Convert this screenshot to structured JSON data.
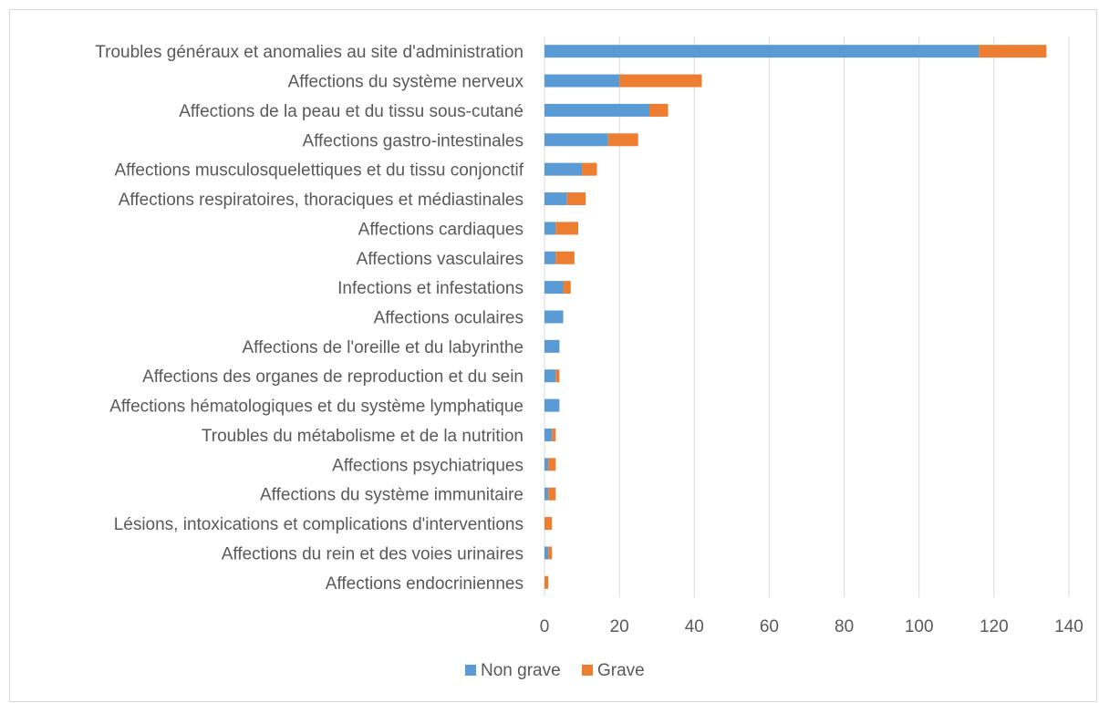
{
  "chart_data": {
    "type": "bar",
    "orientation": "horizontal",
    "stacked": true,
    "categories": [
      "Troubles généraux et anomalies au site d'administration",
      "Affections du système nerveux",
      "Affections de la peau et du tissu sous-cutané",
      "Affections gastro-intestinales",
      "Affections musculosquelettiques et du tissu conjonctif",
      "Affections respiratoires, thoraciques et médiastinales",
      "Affections cardiaques",
      "Affections vasculaires",
      "Infections et infestations",
      "Affections oculaires",
      "Affections de l'oreille et du labyrinthe",
      "Affections des organes de reproduction et du sein",
      "Affections hématologiques et du système lymphatique",
      "Troubles du métabolisme et de la nutrition",
      "Affections psychiatriques",
      "Affections du système immunitaire",
      "Lésions, intoxications et complications d'interventions",
      "Affections du rein et des voies urinaires",
      "Affections endocriniennes"
    ],
    "series": [
      {
        "name": "Non grave",
        "color": "#5b9bd5",
        "values": [
          116,
          20,
          28,
          17,
          10,
          6,
          3,
          3,
          5,
          5,
          4,
          3,
          4,
          2,
          1,
          1,
          0,
          1,
          0
        ]
      },
      {
        "name": "Grave",
        "color": "#ed7d31",
        "values": [
          18,
          22,
          5,
          8,
          4,
          5,
          6,
          5,
          2,
          0,
          0,
          1,
          0,
          1,
          2,
          2,
          2,
          1,
          1
        ]
      }
    ],
    "xticks": [
      "0",
      "20",
      "40",
      "60",
      "80",
      "100",
      "120",
      "140"
    ],
    "xlim": [
      0,
      140
    ],
    "grid": true,
    "legend_position": "bottom",
    "title": "",
    "xlabel": "",
    "ylabel": ""
  }
}
